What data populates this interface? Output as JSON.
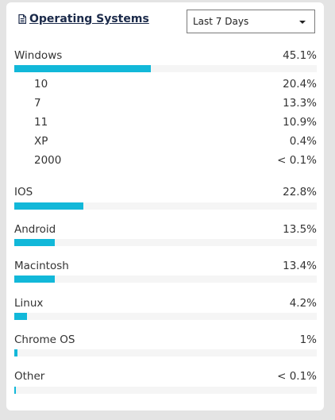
{
  "header": {
    "title": "Operating Systems",
    "icon": "document-icon"
  },
  "filter": {
    "selected": "Last 7 Days"
  },
  "accent_color": "#12b8d9",
  "os_list": [
    {
      "key": "windows",
      "label": "Windows",
      "value": "45.1%",
      "pct": 45.1,
      "versions": [
        {
          "label": "10",
          "value": "20.4%"
        },
        {
          "label": "7",
          "value": "13.3%"
        },
        {
          "label": "11",
          "value": "10.9%"
        },
        {
          "label": "XP",
          "value": "0.4%"
        },
        {
          "label": "2000",
          "value": "< 0.1%"
        }
      ]
    },
    {
      "key": "ios",
      "label": "IOS",
      "value": "22.8%",
      "pct": 22.8
    },
    {
      "key": "android",
      "label": "Android",
      "value": "13.5%",
      "pct": 13.5
    },
    {
      "key": "macintosh",
      "label": "Macintosh",
      "value": "13.4%",
      "pct": 13.4
    },
    {
      "key": "linux",
      "label": "Linux",
      "value": "4.2%",
      "pct": 4.2
    },
    {
      "key": "chromeos",
      "label": "Chrome OS",
      "value": "1%",
      "pct": 1
    },
    {
      "key": "other",
      "label": "Other",
      "value": "< 0.1%",
      "pct": 0.1
    }
  ]
}
